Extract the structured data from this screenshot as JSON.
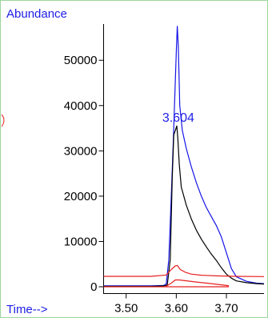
{
  "chart_data": {
    "type": "line",
    "ylabel": "Abundance",
    "xlabel": "Time-->",
    "xlim": [
      3.455,
      3.775
    ],
    "ylim": [
      -1500,
      58000
    ],
    "x_ticks": [
      3.5,
      3.6,
      3.7
    ],
    "x_tick_labels": [
      "3.50",
      "3.60",
      "3.70"
    ],
    "y_ticks": [
      0,
      10000,
      20000,
      30000,
      40000,
      50000
    ],
    "y_tick_labels": [
      "0",
      "10000",
      "20000",
      "30000",
      "40000",
      "50000"
    ],
    "annotations": [
      {
        "text": "3.604",
        "x": 3.604,
        "y": 37500,
        "color": "#1e1ee6"
      }
    ],
    "series": [
      {
        "color": "#1515e8",
        "points": [
          [
            3.455,
            200
          ],
          [
            3.5,
            200
          ],
          [
            3.55,
            200
          ],
          [
            3.575,
            300
          ],
          [
            3.58,
            600
          ],
          [
            3.585,
            6000
          ],
          [
            3.59,
            20000
          ],
          [
            3.594,
            32000
          ],
          [
            3.597,
            42000
          ],
          [
            3.6,
            52000
          ],
          [
            3.602,
            57500
          ],
          [
            3.604,
            53000
          ],
          [
            3.607,
            40000
          ],
          [
            3.612,
            34500
          ],
          [
            3.62,
            30500
          ],
          [
            3.63,
            26500
          ],
          [
            3.64,
            23000
          ],
          [
            3.65,
            20000
          ],
          [
            3.66,
            17500
          ],
          [
            3.67,
            15500
          ],
          [
            3.68,
            13500
          ],
          [
            3.69,
            11000
          ],
          [
            3.7,
            7500
          ],
          [
            3.71,
            4000
          ],
          [
            3.72,
            2200
          ],
          [
            3.74,
            1200
          ],
          [
            3.76,
            800
          ],
          [
            3.775,
            700
          ]
        ]
      },
      {
        "color": "#000000",
        "points": [
          [
            3.455,
            100
          ],
          [
            3.5,
            100
          ],
          [
            3.55,
            100
          ],
          [
            3.575,
            200
          ],
          [
            3.582,
            400
          ],
          [
            3.588,
            6000
          ],
          [
            3.592,
            24000
          ],
          [
            3.595,
            33500
          ],
          [
            3.598,
            34500
          ],
          [
            3.601,
            35500
          ],
          [
            3.603,
            33000
          ],
          [
            3.606,
            27000
          ],
          [
            3.61,
            22000
          ],
          [
            3.62,
            18000
          ],
          [
            3.63,
            15000
          ],
          [
            3.64,
            12500
          ],
          [
            3.65,
            10500
          ],
          [
            3.66,
            8800
          ],
          [
            3.67,
            7200
          ],
          [
            3.68,
            5800
          ],
          [
            3.69,
            4200
          ],
          [
            3.7,
            2800
          ],
          [
            3.71,
            1900
          ],
          [
            3.72,
            1300
          ],
          [
            3.74,
            900
          ],
          [
            3.76,
            700
          ],
          [
            3.775,
            600
          ]
        ]
      },
      {
        "color": "#e62020",
        "points": [
          [
            3.455,
            2300
          ],
          [
            3.5,
            2300
          ],
          [
            3.55,
            2300
          ],
          [
            3.58,
            2600
          ],
          [
            3.59,
            3800
          ],
          [
            3.598,
            4600
          ],
          [
            3.602,
            4700
          ],
          [
            3.608,
            3800
          ],
          [
            3.618,
            3200
          ],
          [
            3.63,
            2800
          ],
          [
            3.65,
            2550
          ],
          [
            3.68,
            2400
          ],
          [
            3.72,
            2300
          ],
          [
            3.775,
            2250
          ]
        ]
      },
      {
        "color": "#e62020",
        "points": [
          [
            3.455,
            0
          ],
          [
            3.578,
            0
          ],
          [
            3.59,
            800
          ],
          [
            3.598,
            1500
          ],
          [
            3.606,
            1500
          ],
          [
            3.64,
            1050
          ],
          [
            3.67,
            700
          ],
          [
            3.704,
            250
          ],
          [
            3.704,
            0
          ],
          [
            3.578,
            0
          ]
        ]
      }
    ]
  }
}
